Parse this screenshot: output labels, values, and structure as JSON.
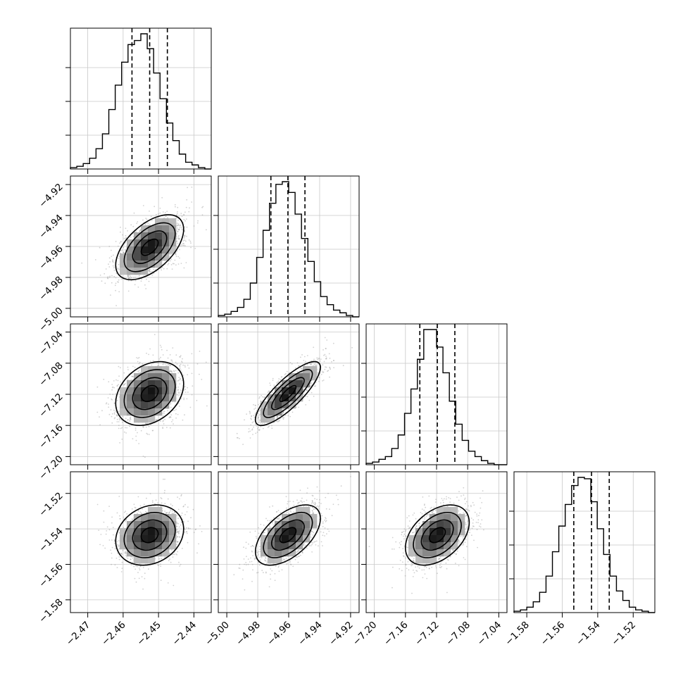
{
  "chart_data": {
    "type": "corner",
    "histogram_style": "step",
    "grid": true,
    "quantile_lines": "dashed vertical lines at the 16th, 50th and 84th percentiles",
    "colors": {
      "line": "#000000",
      "grid": "#c8c8c8",
      "samples": "#9a9a9a",
      "frame": "#000000"
    },
    "parameters": [
      {
        "id": "p1",
        "tick_labels": [
          "-2.47",
          "-2.46",
          "-2.45",
          "-2.44"
        ],
        "tick_values": [
          -2.47,
          -2.46,
          -2.45,
          -2.44
        ],
        "range": [
          -2.4749,
          -2.4351
        ],
        "mean": -2.4525,
        "sigma": 0.0048,
        "quantiles": [
          -2.4575,
          -2.4525,
          -2.4475
        ],
        "hist": [
          1,
          2,
          4,
          8,
          15,
          26,
          44,
          62,
          79,
          92,
          95,
          100,
          89,
          71,
          52,
          34,
          21,
          11,
          5,
          3,
          1,
          0
        ]
      },
      {
        "id": "p2",
        "tick_labels": [
          "-5.00",
          "-4.98",
          "-4.96",
          "-4.94",
          "-4.92"
        ],
        "tick_values": [
          -5.0,
          -4.98,
          -4.96,
          -4.94,
          -4.92
        ],
        "range": [
          -5.0055,
          -4.9145
        ],
        "mean": -4.9605,
        "sigma": 0.0105,
        "quantiles": [
          -4.9715,
          -4.9605,
          -4.9495
        ],
        "hist": [
          1,
          2,
          4,
          7,
          13,
          25,
          44,
          64,
          84,
          98,
          100,
          92,
          76,
          58,
          41,
          26,
          15,
          9,
          5,
          3,
          1,
          0
        ]
      },
      {
        "id": "p3",
        "tick_labels": [
          "-7.20",
          "-7.16",
          "-7.12",
          "-7.08",
          "-7.04"
        ],
        "tick_values": [
          -7.2,
          -7.16,
          -7.12,
          -7.08,
          -7.04
        ],
        "range": [
          -7.2105,
          -7.0295
        ],
        "mean": -7.119,
        "sigma": 0.0205,
        "quantiles": [
          -7.1415,
          -7.119,
          -7.0965
        ],
        "hist": [
          1,
          2,
          4,
          6,
          12,
          22,
          38,
          56,
          78,
          100,
          100,
          87,
          68,
          47,
          30,
          18,
          10,
          6,
          3,
          1,
          0,
          0
        ]
      },
      {
        "id": "p4",
        "tick_labels": [
          "-1.58",
          "-1.56",
          "-1.54",
          "-1.52"
        ],
        "tick_values": [
          -1.58,
          -1.56,
          -1.54,
          -1.52
        ],
        "range": [
          -1.5872,
          -1.5078
        ],
        "mean": -1.5435,
        "sigma": 0.0085,
        "quantiles": [
          -1.5535,
          -1.5435,
          -1.5335
        ],
        "hist": [
          1,
          2,
          4,
          8,
          15,
          27,
          45,
          64,
          80,
          94,
          100,
          99,
          82,
          62,
          43,
          27,
          16,
          9,
          4,
          2,
          1,
          0
        ]
      }
    ],
    "correlations": {
      "p2|p1": 0.55,
      "p3|p1": 0.3,
      "p3|p2": 0.82,
      "p4|p1": 0.2,
      "p4|p2": 0.55,
      "p4|p3": 0.42
    }
  }
}
